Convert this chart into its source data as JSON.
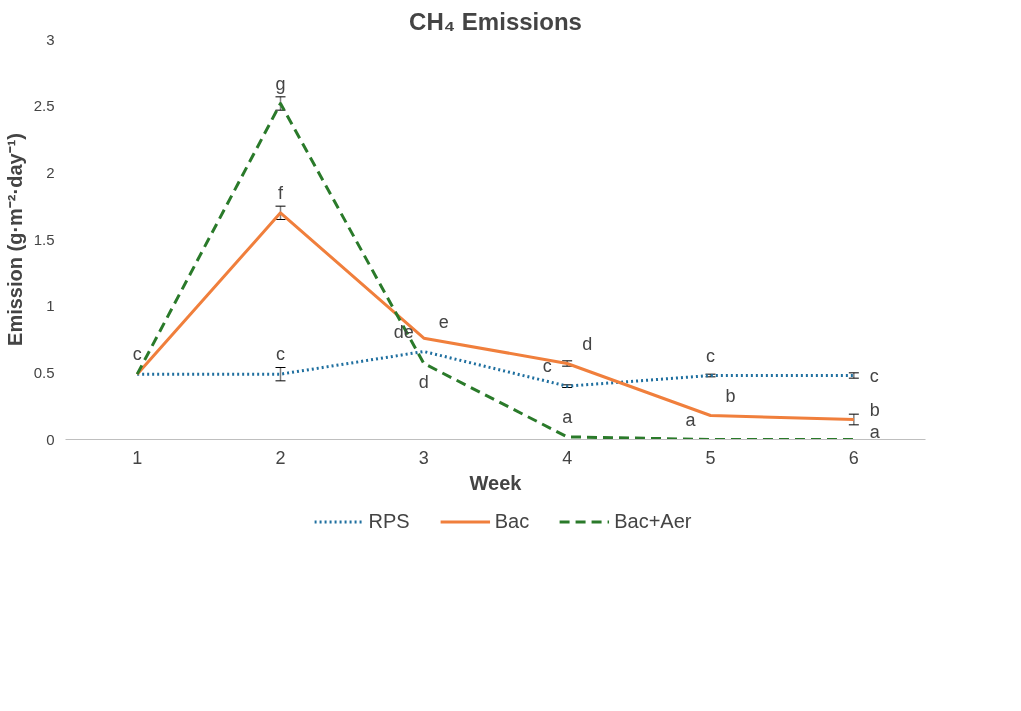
{
  "chart_data": {
    "type": "line",
    "title": "CH₄ Emissions",
    "xlabel": "Week",
    "ylabel": "Emission (g·m⁻²·day⁻¹)",
    "x": [
      1,
      2,
      3,
      4,
      5,
      6
    ],
    "xlim": [
      0.5,
      6.5
    ],
    "xticks": [
      1,
      2,
      3,
      4,
      5,
      6
    ],
    "ylim": [
      0,
      3
    ],
    "yticks": [
      0,
      0.5,
      1,
      1.5,
      2,
      2.5,
      3
    ],
    "grid": false,
    "legend": "bottom",
    "marker": "none",
    "series": [
      {
        "name": "RPS",
        "color": "#1f6f9f",
        "line_style": "dotted",
        "values": [
          0.49,
          0.49,
          0.66,
          0.4,
          0.48,
          0.48
        ],
        "errors": [
          null,
          0.05,
          null,
          0.01,
          0.01,
          0.02
        ]
      },
      {
        "name": "Bac",
        "color": "#f07f3c",
        "line_style": "solid",
        "values": [
          0.49,
          1.7,
          0.76,
          0.57,
          0.18,
          0.15
        ],
        "errors": [
          null,
          0.05,
          null,
          0.02,
          null,
          0.04
        ]
      },
      {
        "name": "Bac+Aer",
        "color": "#2a7a2a",
        "line_style": "dashed",
        "values": [
          0.49,
          2.52,
          0.57,
          0.02,
          0.0,
          0.0
        ],
        "errors": [
          null,
          0.05,
          null,
          null,
          null,
          null
        ]
      }
    ],
    "annotations": [
      {
        "text": "c",
        "x": 1,
        "y": 0.49
      },
      {
        "text": "g",
        "x": 2,
        "y": 2.52
      },
      {
        "text": "f",
        "x": 2,
        "y": 1.7
      },
      {
        "text": "c",
        "x": 2,
        "y": 0.49
      },
      {
        "text": "e",
        "x": 3,
        "y": 0.76
      },
      {
        "text": "de",
        "x": 3,
        "y": 0.66
      },
      {
        "text": "d",
        "x": 3,
        "y": 0.57
      },
      {
        "text": "d",
        "x": 4,
        "y": 0.57
      },
      {
        "text": "c",
        "x": 4,
        "y": 0.4
      },
      {
        "text": "a",
        "x": 4,
        "y": 0.02
      },
      {
        "text": "c",
        "x": 5,
        "y": 0.48
      },
      {
        "text": "b",
        "x": 5,
        "y": 0.18
      },
      {
        "text": "a",
        "x": 5,
        "y": 0.0
      },
      {
        "text": "b",
        "x": 6,
        "y": 0.15
      },
      {
        "text": "c",
        "x": 6,
        "y": 0.48
      },
      {
        "text": "a",
        "x": 6,
        "y": 0.0
      }
    ]
  }
}
